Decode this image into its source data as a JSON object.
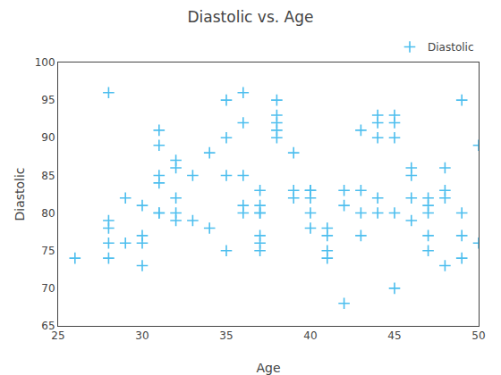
{
  "chart_data": {
    "type": "scatter",
    "title": "Diastolic vs. Age",
    "xlabel": "Age",
    "ylabel": "Diastolic",
    "x": [
      26,
      28,
      28,
      28,
      28,
      28,
      29,
      29,
      30,
      30,
      30,
      30,
      31,
      31,
      31,
      31,
      31,
      31,
      32,
      32,
      32,
      32,
      32,
      33,
      33,
      34,
      34,
      35,
      35,
      35,
      35,
      36,
      36,
      36,
      36,
      36,
      37,
      37,
      37,
      37,
      37,
      37,
      37,
      38,
      38,
      38,
      38,
      38,
      39,
      39,
      39,
      40,
      40,
      40,
      40,
      40,
      41,
      41,
      41,
      41,
      42,
      42,
      42,
      43,
      43,
      43,
      43,
      44,
      44,
      44,
      44,
      44,
      45,
      45,
      45,
      45,
      45,
      46,
      46,
      46,
      46,
      47,
      47,
      47,
      47,
      47,
      48,
      48,
      48,
      48,
      49,
      49,
      49,
      49,
      50,
      50
    ],
    "series": [
      {
        "name": "Diastolic",
        "color": "#4DBEEE",
        "marker": "+",
        "values": [
          74,
          96,
          79,
          78,
          76,
          74,
          82,
          76,
          81,
          77,
          76,
          73,
          91,
          89,
          85,
          84,
          80,
          80,
          87,
          86,
          82,
          80,
          79,
          85,
          79,
          88,
          78,
          95,
          90,
          85,
          75,
          96,
          92,
          85,
          81,
          80,
          83,
          81,
          80,
          80,
          77,
          76,
          75,
          93,
          92,
          95,
          91,
          90,
          88,
          83,
          82,
          83,
          83,
          82,
          80,
          78,
          78,
          77,
          75,
          74,
          83,
          81,
          68,
          91,
          83,
          80,
          77,
          93,
          92,
          90,
          82,
          80,
          92,
          93,
          90,
          80,
          70,
          86,
          85,
          82,
          79,
          82,
          81,
          80,
          77,
          75,
          86,
          83,
          82,
          73,
          95,
          80,
          77,
          74,
          89,
          76
        ]
      }
    ],
    "xlim": [
      25,
      50
    ],
    "ylim": [
      65,
      100
    ],
    "xticks": [
      25,
      30,
      35,
      40,
      45,
      50
    ],
    "yticks": [
      65,
      70,
      75,
      80,
      85,
      90,
      95,
      100
    ],
    "grid": false,
    "legend": "upper right"
  }
}
